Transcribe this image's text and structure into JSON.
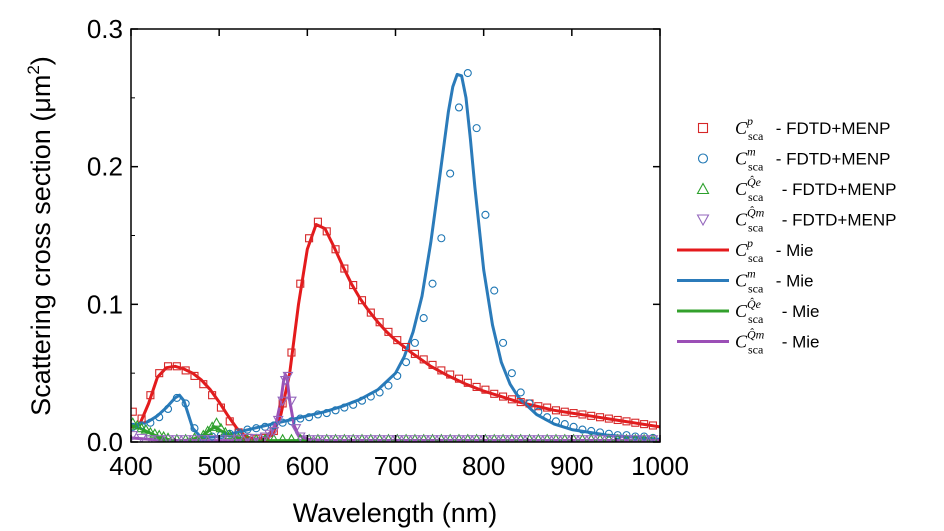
{
  "chart_data": {
    "type": "line",
    "xlabel": "Wavelength (nm)",
    "ylabel": {
      "main": "Scattering cross section (μm",
      "sup": "2",
      "close": ")"
    },
    "xlim": [
      400,
      1000
    ],
    "ylim": [
      0,
      0.3
    ],
    "xticks": [
      "400",
      "500",
      "600",
      "700",
      "800",
      "900",
      "1000"
    ],
    "xtick_values": [
      400,
      500,
      600,
      700,
      800,
      900,
      1000
    ],
    "yticks": [
      "0.0",
      "0.1",
      "0.2",
      "0.3"
    ],
    "ytick_values": [
      0,
      0.1,
      0.2,
      0.3
    ],
    "legend_position": "right",
    "legend": [
      {
        "symbol": "C",
        "sub": "sca",
        "sup": "p",
        "text": " - FDTD+MENP",
        "style": "marker",
        "marker": "square",
        "color": "#d62728"
      },
      {
        "symbol": "C",
        "sub": "sca",
        "sup": "m",
        "text": " - FDTD+MENP",
        "style": "marker",
        "marker": "circle",
        "color": "#1f77b4"
      },
      {
        "symbol": "C",
        "sub": "sca",
        "sup": "Q̂e",
        "text": " - FDTD+MENP",
        "style": "marker",
        "marker": "triangle-up",
        "color": "#2ca02c"
      },
      {
        "symbol": "C",
        "sub": "sca",
        "sup": "Q̂m",
        "text": " - FDTD+MENP",
        "style": "marker",
        "marker": "triangle-down",
        "color": "#9467bd"
      },
      {
        "symbol": "C",
        "sub": "sca",
        "sup": "p",
        "text": " - Mie",
        "style": "line",
        "color": "#e41a1c"
      },
      {
        "symbol": "C",
        "sub": "sca",
        "sup": "m",
        "text": " - Mie",
        "style": "line",
        "color": "#2b7bba"
      },
      {
        "symbol": "C",
        "sub": "sca",
        "sup": "Q̂e",
        "text": " - Mie",
        "style": "line",
        "color": "#33a02c"
      },
      {
        "symbol": "C",
        "sub": "sca",
        "sup": "Q̂m",
        "text": " - Mie",
        "style": "line",
        "color": "#9b4fb6"
      }
    ],
    "series": [
      {
        "name": "C_sca^p - Mie",
        "style": "line",
        "color": "#e41a1c",
        "x": [
          400,
          410,
          420,
          430,
          440,
          450,
          460,
          470,
          480,
          490,
          500,
          510,
          520,
          530,
          540,
          550,
          560,
          570,
          580,
          590,
          600,
          610,
          620,
          630,
          640,
          650,
          660,
          670,
          680,
          690,
          700,
          720,
          740,
          760,
          780,
          800,
          820,
          840,
          860,
          880,
          900,
          920,
          940,
          960,
          980,
          1000
        ],
        "y": [
          0.011,
          0.013,
          0.028,
          0.047,
          0.054,
          0.055,
          0.053,
          0.05,
          0.045,
          0.038,
          0.029,
          0.019,
          0.01,
          0.004,
          0.002,
          0.002,
          0.005,
          0.02,
          0.05,
          0.1,
          0.14,
          0.158,
          0.155,
          0.142,
          0.128,
          0.115,
          0.104,
          0.095,
          0.087,
          0.08,
          0.074,
          0.064,
          0.055,
          0.048,
          0.042,
          0.037,
          0.033,
          0.029,
          0.026,
          0.023,
          0.021,
          0.019,
          0.017,
          0.015,
          0.013,
          0.011
        ]
      },
      {
        "name": "C_sca^m - Mie",
        "style": "line",
        "color": "#2b7bba",
        "x": [
          400,
          410,
          420,
          430,
          440,
          450,
          455,
          460,
          470,
          480,
          500,
          520,
          540,
          560,
          580,
          600,
          620,
          640,
          660,
          680,
          700,
          710,
          720,
          730,
          740,
          750,
          760,
          765,
          770,
          775,
          780,
          785,
          790,
          800,
          810,
          820,
          830,
          840,
          860,
          880,
          900,
          920,
          940,
          960,
          980,
          1000
        ],
        "y": [
          0.012,
          0.013,
          0.015,
          0.019,
          0.025,
          0.032,
          0.034,
          0.03,
          0.01,
          0.003,
          0.004,
          0.007,
          0.01,
          0.013,
          0.016,
          0.019,
          0.022,
          0.026,
          0.031,
          0.038,
          0.05,
          0.062,
          0.08,
          0.106,
          0.145,
          0.192,
          0.24,
          0.258,
          0.267,
          0.266,
          0.25,
          0.22,
          0.185,
          0.125,
          0.085,
          0.058,
          0.042,
          0.032,
          0.02,
          0.013,
          0.009,
          0.007,
          0.005,
          0.004,
          0.003,
          0.002
        ]
      },
      {
        "name": "C_sca^Q̂e - Mie",
        "style": "line",
        "color": "#33a02c",
        "x": [
          400,
          410,
          420,
          430,
          440,
          450,
          460,
          470,
          480,
          490,
          495,
          500,
          510,
          520,
          530,
          540,
          550,
          560,
          600,
          700,
          800,
          900,
          1000
        ],
        "y": [
          0.012,
          0.01,
          0.007,
          0.004,
          0.002,
          0.001,
          0.001,
          0.002,
          0.004,
          0.009,
          0.011,
          0.009,
          0.005,
          0.003,
          0.002,
          0.001,
          0.001,
          0.001,
          0.001,
          0.001,
          0.001,
          0.001,
          0.001
        ]
      },
      {
        "name": "C_sca^Q̂m - Mie",
        "style": "line",
        "color": "#9b4fb6",
        "x": [
          400,
          420,
          440,
          460,
          480,
          500,
          520,
          540,
          550,
          560,
          565,
          570,
          573,
          575,
          577,
          580,
          585,
          590,
          600,
          620,
          700,
          800,
          900,
          1000
        ],
        "y": [
          0.003,
          0.002,
          0.001,
          0.001,
          0.001,
          0.001,
          0.001,
          0.002,
          0.003,
          0.008,
          0.015,
          0.03,
          0.044,
          0.049,
          0.046,
          0.03,
          0.012,
          0.005,
          0.002,
          0.001,
          0.001,
          0.001,
          0.001,
          0.001
        ]
      },
      {
        "name": "C_sca^p - FDTD+MENP",
        "style": "marker",
        "marker": "square",
        "color": "#d62728",
        "x": [
          402,
          412,
          422,
          432,
          442,
          452,
          462,
          472,
          482,
          492,
          502,
          512,
          522,
          532,
          542,
          552,
          562,
          572,
          582,
          592,
          602,
          612,
          622,
          632,
          642,
          652,
          662,
          672,
          682,
          692,
          702,
          712,
          722,
          732,
          742,
          752,
          762,
          772,
          782,
          792,
          802,
          812,
          822,
          832,
          842,
          852,
          862,
          872,
          882,
          892,
          902,
          912,
          922,
          932,
          942,
          952,
          962,
          972,
          982,
          992
        ],
        "y": [
          0.022,
          0.017,
          0.034,
          0.05,
          0.055,
          0.055,
          0.052,
          0.048,
          0.042,
          0.034,
          0.025,
          0.015,
          0.007,
          0.003,
          0.002,
          0.003,
          0.008,
          0.028,
          0.065,
          0.115,
          0.148,
          0.16,
          0.153,
          0.14,
          0.126,
          0.114,
          0.103,
          0.094,
          0.087,
          0.08,
          0.074,
          0.069,
          0.064,
          0.06,
          0.056,
          0.052,
          0.049,
          0.046,
          0.043,
          0.04,
          0.038,
          0.035,
          0.033,
          0.031,
          0.029,
          0.028,
          0.026,
          0.025,
          0.023,
          0.022,
          0.021,
          0.02,
          0.019,
          0.018,
          0.017,
          0.016,
          0.015,
          0.014,
          0.013,
          0.012
        ]
      },
      {
        "name": "C_sca^m - FDTD+MENP",
        "style": "marker",
        "marker": "circle",
        "color": "#1f77b4",
        "x": [
          402,
          412,
          422,
          432,
          442,
          452,
          462,
          472,
          482,
          492,
          502,
          512,
          522,
          532,
          542,
          552,
          562,
          572,
          582,
          592,
          602,
          612,
          622,
          632,
          642,
          652,
          662,
          672,
          682,
          692,
          702,
          712,
          722,
          732,
          742,
          752,
          762,
          772,
          782,
          792,
          802,
          812,
          822,
          832,
          842,
          852,
          862,
          872,
          882,
          892,
          902,
          912,
          922,
          932,
          942,
          952,
          962,
          972,
          982,
          992
        ],
        "y": [
          0.011,
          0.012,
          0.014,
          0.018,
          0.024,
          0.032,
          0.028,
          0.01,
          0.003,
          0.004,
          0.005,
          0.006,
          0.007,
          0.009,
          0.01,
          0.011,
          0.012,
          0.014,
          0.015,
          0.017,
          0.018,
          0.02,
          0.021,
          0.023,
          0.025,
          0.027,
          0.03,
          0.033,
          0.036,
          0.041,
          0.048,
          0.058,
          0.072,
          0.09,
          0.115,
          0.148,
          0.195,
          0.243,
          0.268,
          0.228,
          0.165,
          0.11,
          0.072,
          0.05,
          0.036,
          0.028,
          0.022,
          0.018,
          0.015,
          0.013,
          0.011,
          0.009,
          0.008,
          0.007,
          0.006,
          0.005,
          0.005,
          0.004,
          0.004,
          0.003
        ]
      },
      {
        "name": "C_sca^Q̂e - FDTD+MENP",
        "style": "marker",
        "marker": "triangle-up",
        "color": "#2ca02c",
        "x": [
          402,
          407,
          412,
          417,
          422,
          427,
          432,
          437,
          442,
          452,
          462,
          472,
          482,
          487,
          492,
          497,
          502,
          507,
          512,
          522,
          532,
          542,
          552,
          562,
          572,
          582,
          592,
          602,
          612,
          622,
          632,
          642,
          652,
          662,
          672,
          682,
          692,
          702,
          712,
          722,
          732,
          742,
          752,
          762,
          772,
          782,
          792,
          802,
          812,
          822,
          832,
          842,
          852,
          862,
          872,
          882,
          892,
          902,
          912,
          922,
          932,
          942,
          952,
          962,
          972,
          982,
          992
        ],
        "y": [
          0.014,
          0.012,
          0.01,
          0.009,
          0.007,
          0.006,
          0.005,
          0.004,
          0.003,
          0.002,
          0.002,
          0.003,
          0.005,
          0.008,
          0.011,
          0.014,
          0.01,
          0.007,
          0.005,
          0.003,
          0.002,
          0.002,
          0.002,
          0.002,
          0.002,
          0.002,
          0.002,
          0.002,
          0.002,
          0.002,
          0.002,
          0.002,
          0.002,
          0.002,
          0.002,
          0.002,
          0.002,
          0.002,
          0.002,
          0.002,
          0.002,
          0.002,
          0.002,
          0.002,
          0.002,
          0.002,
          0.002,
          0.002,
          0.002,
          0.002,
          0.002,
          0.002,
          0.002,
          0.002,
          0.002,
          0.002,
          0.002,
          0.002,
          0.002,
          0.002,
          0.002,
          0.002,
          0.002,
          0.002,
          0.002,
          0.002,
          0.002
        ]
      },
      {
        "name": "C_sca^Q̂m - FDTD+MENP",
        "style": "marker",
        "marker": "triangle-down",
        "color": "#9467bd",
        "x": [
          402,
          412,
          422,
          432,
          442,
          452,
          462,
          472,
          482,
          492,
          502,
          512,
          522,
          532,
          542,
          552,
          557,
          562,
          567,
          572,
          575,
          578,
          582,
          587,
          592,
          602,
          612,
          622,
          632,
          642,
          652,
          662,
          672,
          682,
          692,
          702,
          712,
          722,
          732,
          742,
          752,
          762,
          772,
          782,
          792,
          802,
          812,
          822,
          832,
          842,
          852,
          862,
          872,
          882,
          892,
          902,
          912,
          922,
          932,
          942,
          952,
          962,
          972,
          982,
          992
        ],
        "y": [
          0.005,
          0.003,
          0.002,
          0.002,
          0.002,
          0.002,
          0.002,
          0.002,
          0.002,
          0.002,
          0.002,
          0.002,
          0.002,
          0.003,
          0.003,
          0.004,
          0.006,
          0.008,
          0.016,
          0.03,
          0.045,
          0.048,
          0.03,
          0.01,
          0.004,
          0.002,
          0.002,
          0.002,
          0.002,
          0.002,
          0.002,
          0.002,
          0.002,
          0.002,
          0.002,
          0.002,
          0.002,
          0.002,
          0.002,
          0.002,
          0.002,
          0.002,
          0.002,
          0.002,
          0.002,
          0.002,
          0.002,
          0.002,
          0.002,
          0.002,
          0.002,
          0.002,
          0.002,
          0.002,
          0.002,
          0.002,
          0.002,
          0.002,
          0.002,
          0.002,
          0.002,
          0.002,
          0.002,
          0.002,
          0.002
        ]
      }
    ]
  }
}
